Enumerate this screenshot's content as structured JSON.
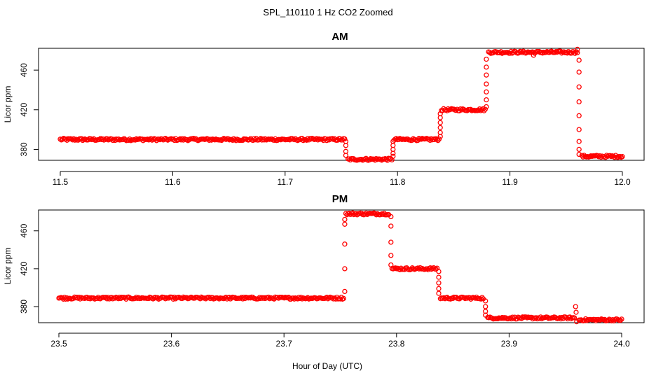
{
  "figure": {
    "title": "SPL_110110  1 Hz CO2 Zoomed",
    "xlabel": "Hour of Day (UTC)"
  },
  "colors": {
    "points": "#ff0000",
    "axes": "#000000"
  },
  "chart_data": [
    {
      "type": "scatter",
      "title": "AM",
      "xlabel": "Hour of Day (UTC)",
      "ylabel": "Licor ppm",
      "xlim": [
        11.5,
        12.0
      ],
      "ylim": [
        369,
        482
      ],
      "xticks": [
        11.5,
        11.6,
        11.7,
        11.8,
        11.9,
        12.0
      ],
      "xtick_labels": [
        "11.5",
        "11.6",
        "11.7",
        "11.8",
        "11.9",
        "12.0"
      ],
      "yticks": [
        380,
        420,
        460
      ],
      "ytick_labels": [
        "380",
        "420",
        "460"
      ],
      "grid": false,
      "marker": "open-circle",
      "series": [
        {
          "segments": [
            {
              "x": [
                11.5,
                11.753
              ],
              "y": 390
            },
            {
              "x": [
                11.756,
                11.795
              ],
              "y": 370
            },
            {
              "x": [
                11.797,
                11.837
              ],
              "y": 390
            },
            {
              "x": [
                11.839,
                11.878
              ],
              "y": 420
            },
            {
              "x": [
                11.881,
                11.96
              ],
              "y": 478
            },
            {
              "x": [
                11.964,
                12.0
              ],
              "y": 373
            }
          ],
          "transitions": [
            {
              "x": 11.754,
              "y": [
                388,
                384,
                378,
                374
              ]
            },
            {
              "x": 11.796,
              "y": [
                373,
                376,
                380,
                384,
                388
              ]
            },
            {
              "x": 11.838,
              "y": [
                393,
                397,
                402,
                407,
                412,
                416
              ]
            },
            {
              "x": 11.879,
              "y": [
                423,
                430,
                438,
                446,
                455,
                463,
                471
              ]
            },
            {
              "x": 11.9615,
              "y": [
                470,
                458,
                443,
                428,
                414,
                400,
                388,
                380,
                375
              ]
            }
          ],
          "outliers": [
            {
              "x": 11.921,
              "y": 475
            },
            {
              "x": 11.96,
              "y": 481
            }
          ]
        }
      ]
    },
    {
      "type": "scatter",
      "title": "PM",
      "xlabel": "Hour of Day (UTC)",
      "ylabel": "Licor ppm",
      "xlim": [
        23.5,
        24.0
      ],
      "ylim": [
        363,
        482
      ],
      "xticks": [
        23.5,
        23.6,
        23.7,
        23.8,
        23.9,
        24.0
      ],
      "xtick_labels": [
        "23.5",
        "23.6",
        "23.7",
        "23.8",
        "23.9",
        "24.0"
      ],
      "yticks": [
        380,
        420,
        460
      ],
      "ytick_labels": [
        "380",
        "420",
        "460"
      ],
      "grid": false,
      "marker": "open-circle",
      "series": [
        {
          "segments": [
            {
              "x": [
                23.5,
                23.753
              ],
              "y": 389
            },
            {
              "x": [
                23.755,
                23.793
              ],
              "y": 478
            },
            {
              "x": [
                23.796,
                23.836
              ],
              "y": 420
            },
            {
              "x": [
                23.839,
                23.877
              ],
              "y": 389
            },
            {
              "x": [
                23.881,
                23.958
              ],
              "y": 368
            },
            {
              "x": [
                23.962,
                24.0
              ],
              "y": 366
            }
          ],
          "transitions": [
            {
              "x": 23.754,
              "y": [
                396,
                420,
                446,
                467,
                472
              ]
            },
            {
              "x": 23.795,
              "y": [
                475,
                465,
                448,
                434,
                424
              ]
            },
            {
              "x": 23.8375,
              "y": [
                417,
                411,
                405,
                399,
                394
              ]
            },
            {
              "x": 23.879,
              "y": [
                386,
                380,
                375,
                371
              ]
            }
          ],
          "outliers": [
            {
              "x": 23.959,
              "y": 380
            },
            {
              "x": 23.9595,
              "y": 374
            },
            {
              "x": 23.96,
              "y": 364
            }
          ]
        }
      ]
    }
  ]
}
